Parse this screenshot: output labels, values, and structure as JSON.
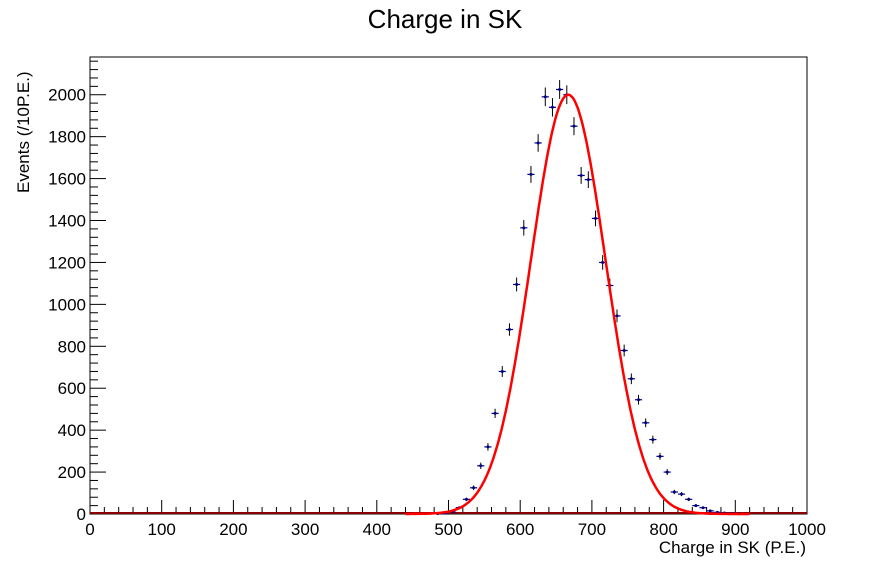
{
  "chart_data": {
    "type": "scatter",
    "title": "Charge in SK",
    "xlabel": "Charge in SK (P.E.)",
    "ylabel": "Events (/10P.E.)",
    "xlim": [
      0,
      1000
    ],
    "ylim": [
      0,
      2180
    ],
    "x_ticks": [
      0,
      100,
      200,
      300,
      400,
      500,
      600,
      700,
      800,
      900,
      1000
    ],
    "y_ticks": [
      0,
      200,
      400,
      600,
      800,
      1000,
      1200,
      1400,
      1600,
      1800,
      2000
    ],
    "grid": false,
    "legend": "none",
    "bin_width": 10,
    "series": [
      {
        "kind": "histogram-points",
        "color": "#000080",
        "x": [
          485,
          495,
          505,
          515,
          525,
          535,
          545,
          555,
          565,
          575,
          585,
          595,
          605,
          615,
          625,
          635,
          645,
          655,
          665,
          675,
          685,
          695,
          705,
          715,
          725,
          735,
          745,
          755,
          765,
          775,
          785,
          795,
          805,
          815,
          825,
          835,
          845,
          855,
          865,
          875,
          885,
          895,
          905,
          915
        ],
        "y": [
          2,
          4,
          10,
          30,
          70,
          125,
          230,
          320,
          480,
          680,
          880,
          1095,
          1365,
          1620,
          1770,
          1990,
          1940,
          2025,
          2000,
          1850,
          1615,
          1595,
          1410,
          1200,
          1090,
          945,
          780,
          645,
          545,
          435,
          355,
          275,
          200,
          105,
          95,
          70,
          40,
          30,
          15,
          8,
          5,
          3,
          1,
          1
        ]
      },
      {
        "kind": "gaussian-fit",
        "color": "#ff0000",
        "amplitude": 2000,
        "mean": 667,
        "sigma": 52
      }
    ],
    "baseline_color": "#8b0000"
  }
}
